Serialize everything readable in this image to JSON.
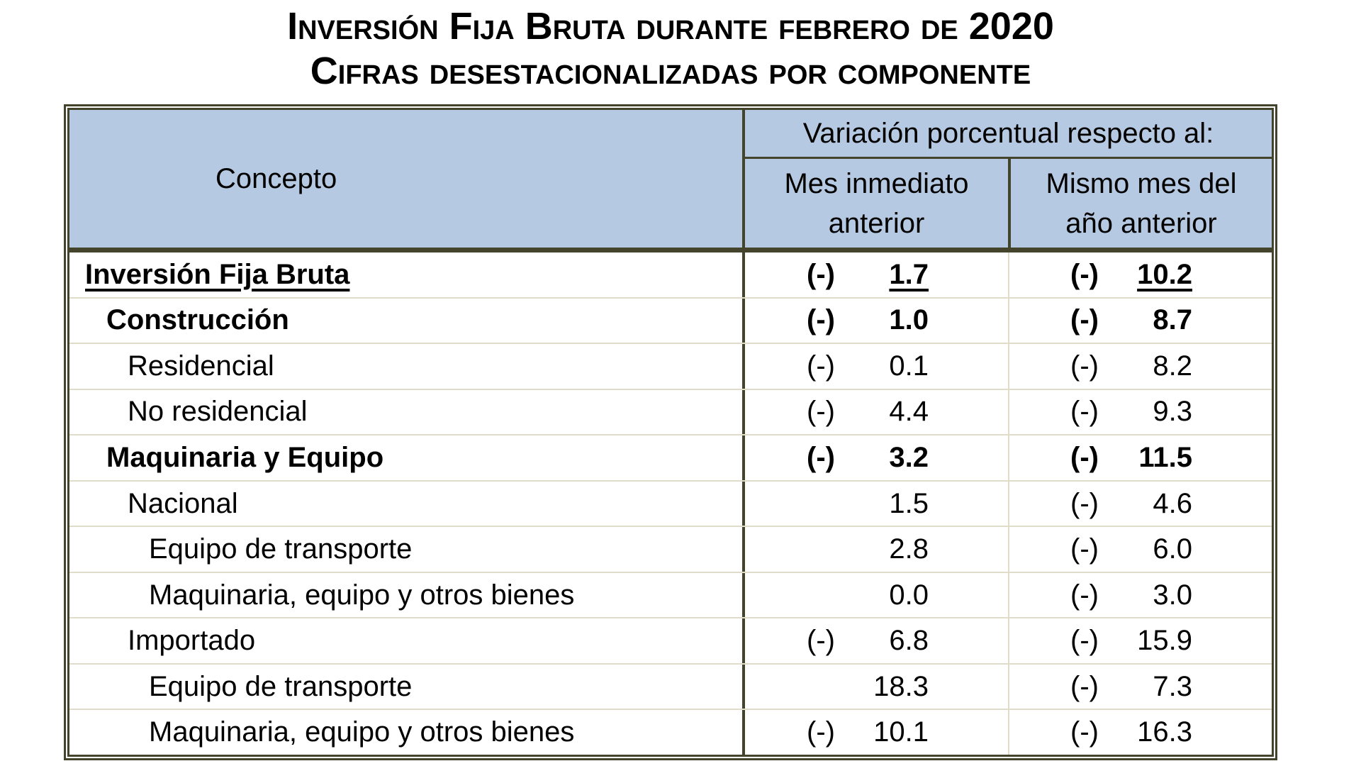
{
  "title": {
    "line1": "Inversión Fija Bruta durante febrero de 2020",
    "line2": "Cifras desestacionalizadas por componente"
  },
  "table": {
    "concept_header": "Concepto",
    "span_header": "Variación porcentual respecto al:",
    "col1_header_line1": "Mes inmediato",
    "col1_header_line2": "anterior",
    "col2_header_line1": "Mismo mes del",
    "col2_header_line2": "año anterior",
    "rows": [
      {
        "concept": "Inversión Fija Bruta",
        "indent": 0,
        "style": "total",
        "col1": {
          "sign": "(-)",
          "value": "1.7"
        },
        "col2": {
          "sign": "(-)",
          "value": "10.2"
        }
      },
      {
        "concept": "Construcción",
        "indent": 1,
        "style": "bold",
        "col1": {
          "sign": "(-)",
          "value": "1.0"
        },
        "col2": {
          "sign": "(-)",
          "value": "8.7"
        }
      },
      {
        "concept": "Residencial",
        "indent": 2,
        "style": "plain",
        "col1": {
          "sign": "(-)",
          "value": "0.1"
        },
        "col2": {
          "sign": "(-)",
          "value": "8.2"
        }
      },
      {
        "concept": "No residencial",
        "indent": 2,
        "style": "plain",
        "col1": {
          "sign": "(-)",
          "value": "4.4"
        },
        "col2": {
          "sign": "(-)",
          "value": "9.3"
        }
      },
      {
        "concept": "Maquinaria y Equipo",
        "indent": 1,
        "style": "bold",
        "col1": {
          "sign": "(-)",
          "value": "3.2"
        },
        "col2": {
          "sign": "(-)",
          "value": "11.5"
        }
      },
      {
        "concept": "Nacional",
        "indent": 2,
        "style": "plain",
        "col1": {
          "sign": "",
          "value": "1.5"
        },
        "col2": {
          "sign": "(-)",
          "value": "4.6"
        }
      },
      {
        "concept": "Equipo de transporte",
        "indent": 3,
        "style": "plain",
        "col1": {
          "sign": "",
          "value": "2.8"
        },
        "col2": {
          "sign": "(-)",
          "value": "6.0"
        }
      },
      {
        "concept": "Maquinaria, equipo y otros bienes",
        "indent": 3,
        "style": "plain",
        "col1": {
          "sign": "",
          "value": "0.0"
        },
        "col2": {
          "sign": "(-)",
          "value": "3.0"
        }
      },
      {
        "concept": "Importado",
        "indent": 2,
        "style": "plain",
        "col1": {
          "sign": "(-)",
          "value": "6.8"
        },
        "col2": {
          "sign": "(-)",
          "value": "15.9"
        }
      },
      {
        "concept": "Equipo de transporte",
        "indent": 3,
        "style": "plain",
        "col1": {
          "sign": "",
          "value": "18.3"
        },
        "col2": {
          "sign": "(-)",
          "value": "7.3"
        }
      },
      {
        "concept": "Maquinaria, equipo y otros bienes",
        "indent": 3,
        "style": "plain",
        "col1": {
          "sign": "(-)",
          "value": "10.1"
        },
        "col2": {
          "sign": "(-)",
          "value": "16.3"
        }
      }
    ]
  },
  "colors": {
    "header_fill": "#b6c9e2",
    "border_dark": "#44432b",
    "grid_light": "#dfddc9",
    "text": "#000000",
    "background": "#ffffff"
  }
}
